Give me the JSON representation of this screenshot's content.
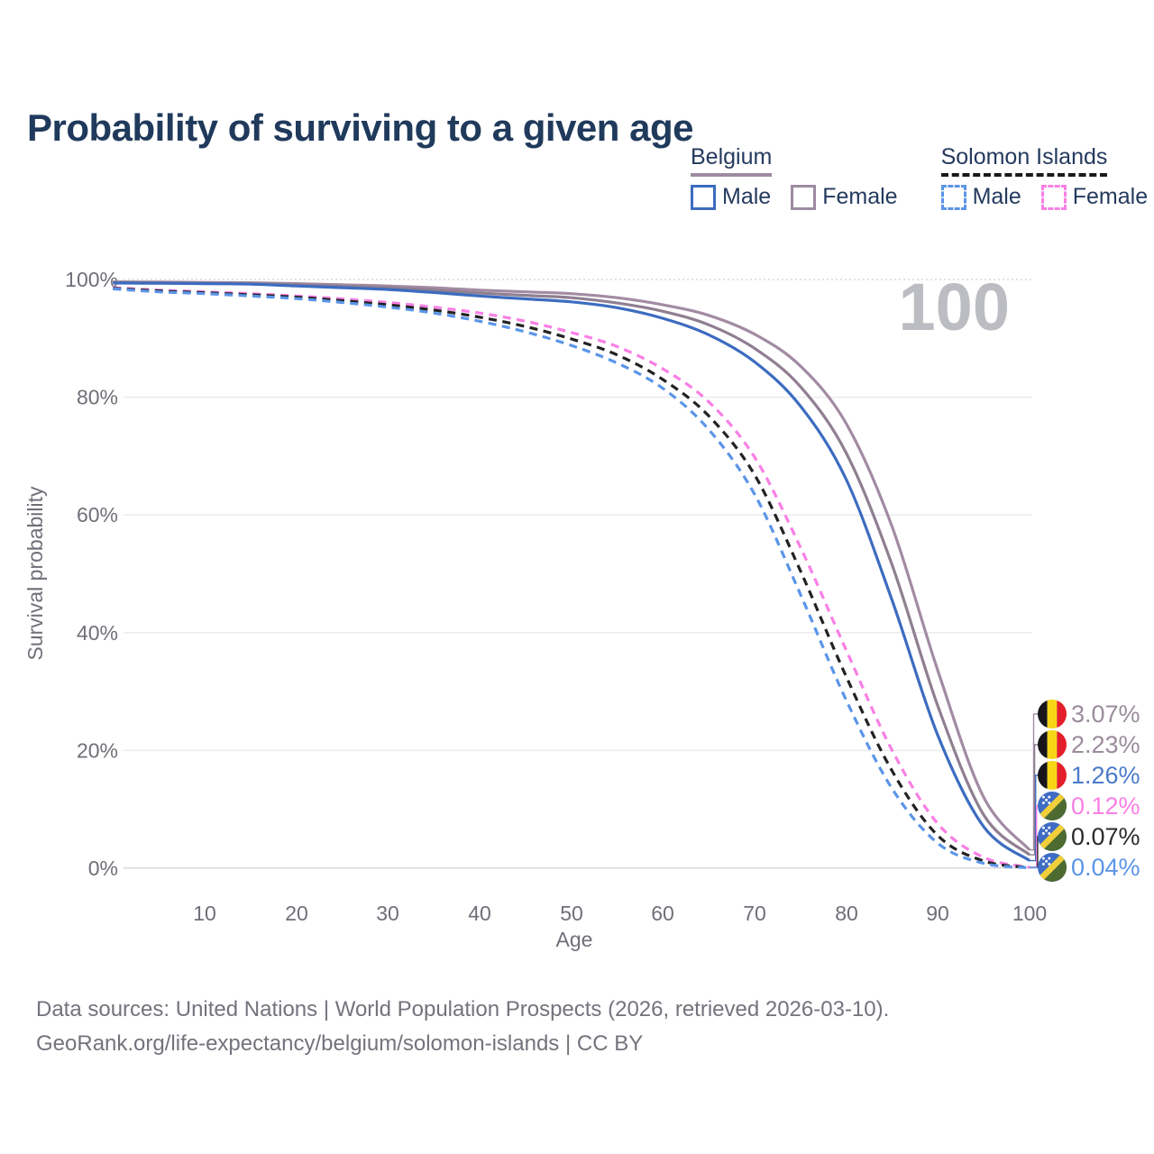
{
  "header": {
    "title": "Probability of surviving to a given age"
  },
  "legend": {
    "groups": [
      {
        "label": "Belgium",
        "line_style": "solid",
        "underline_color": "#9d8ba1",
        "items": [
          {
            "label": "Male",
            "color": "#3c6cc0"
          },
          {
            "label": "Female",
            "color": "#9d8ba1"
          }
        ]
      },
      {
        "label": "Solomon Islands",
        "line_style": "dashed",
        "underline_color": "#1a1a1a",
        "items": [
          {
            "label": "Male",
            "color": "#5b95e8"
          },
          {
            "label": "Female",
            "color": "#f97fe5"
          }
        ]
      }
    ]
  },
  "chart_data": {
    "type": "line",
    "title": "Probability of surviving to a given age",
    "xlabel": "Age",
    "ylabel": "Survival probability",
    "xlim": [
      0,
      100
    ],
    "ylim": [
      0,
      100
    ],
    "grid": "horizontal",
    "watermark": "100",
    "x_tick_labels": [
      "10",
      "20",
      "30",
      "40",
      "50",
      "60",
      "70",
      "80",
      "90",
      "100"
    ],
    "y_tick_labels": [
      "0%",
      "20%",
      "40%",
      "60%",
      "80%",
      "100%"
    ],
    "ages": [
      0,
      5,
      10,
      15,
      20,
      25,
      30,
      35,
      40,
      45,
      50,
      55,
      60,
      65,
      70,
      75,
      80,
      85,
      90,
      95,
      100
    ],
    "series": [
      {
        "id": "belgium-female",
        "name": "Belgium Female",
        "country": "Belgium",
        "color": "#a28ba2",
        "line_style": "solid",
        "values": [
          99.6,
          99.55,
          99.5,
          99.45,
          99.3,
          99.1,
          98.9,
          98.6,
          98.2,
          97.9,
          97.6,
          96.9,
          95.7,
          93.9,
          90.7,
          85.3,
          75.5,
          58.0,
          33.5,
          12.0,
          3.07
        ]
      },
      {
        "id": "belgium-both",
        "name": "Belgium Both sexes",
        "country": "Belgium",
        "color": "#8f7f91",
        "line_style": "solid",
        "values": [
          99.5,
          99.45,
          99.4,
          99.3,
          99.1,
          98.85,
          98.6,
          98.2,
          97.7,
          97.3,
          96.9,
          96.0,
          94.6,
          92.3,
          88.3,
          81.8,
          70.5,
          51.5,
          27.5,
          9.0,
          2.23
        ]
      },
      {
        "id": "belgium-male",
        "name": "Belgium Male",
        "country": "Belgium",
        "color": "#3c6cc0",
        "line_style": "solid",
        "values": [
          99.4,
          99.35,
          99.3,
          99.2,
          98.9,
          98.6,
          98.3,
          97.8,
          97.2,
          96.7,
          96.2,
          95.2,
          93.4,
          90.6,
          86.0,
          78.5,
          66.0,
          45.5,
          22.5,
          7.0,
          1.26
        ]
      },
      {
        "id": "solomon-islands-female",
        "name": "Solomon Islands Female",
        "country": "Solomon Islands",
        "color": "#f97fe5",
        "line_style": "dashed",
        "values": [
          98.6,
          98.2,
          97.9,
          97.6,
          97.2,
          96.7,
          96.1,
          95.3,
          94.3,
          92.9,
          91.0,
          88.6,
          84.8,
          79.2,
          69.8,
          54.5,
          37.0,
          20.0,
          7.5,
          1.8,
          0.12
        ]
      },
      {
        "id": "solomon-islands-both",
        "name": "Solomon Islands Both sexes",
        "country": "Solomon Islands",
        "color": "#222222",
        "line_style": "dashed",
        "values": [
          98.5,
          98.05,
          97.75,
          97.4,
          97.0,
          96.4,
          95.7,
          94.8,
          93.6,
          92.0,
          89.9,
          87.2,
          83.0,
          76.8,
          66.8,
          50.5,
          32.5,
          16.5,
          5.5,
          1.2,
          0.07
        ]
      },
      {
        "id": "solomon-islands-male",
        "name": "Solomon Islands Male",
        "country": "Solomon Islands",
        "color": "#5b95e8",
        "line_style": "dashed",
        "values": [
          98.4,
          97.9,
          97.6,
          97.2,
          96.75,
          96.1,
          95.3,
          94.3,
          92.9,
          91.1,
          88.8,
          85.8,
          81.5,
          74.5,
          63.5,
          46.5,
          28.5,
          13.5,
          4.2,
          0.8,
          0.04
        ]
      }
    ],
    "end_labels": [
      {
        "text": "3.07%",
        "value": 3.07,
        "flag": "belgium",
        "text_color": "#9b8b9d",
        "line_color": "#a28ba2"
      },
      {
        "text": "2.23%",
        "value": 2.23,
        "flag": "belgium",
        "text_color": "#9b8b9d",
        "line_color": "#8f7f91"
      },
      {
        "text": "1.26%",
        "value": 1.26,
        "flag": "belgium",
        "text_color": "#4a7ac9",
        "line_color": "#3c6cc0"
      },
      {
        "text": "0.12%",
        "value": 0.12,
        "flag": "solomon-islands",
        "text_color": "#f97fe5",
        "line_color": "#f97fe5"
      },
      {
        "text": "0.07%",
        "value": 0.07,
        "flag": "solomon-islands",
        "text_color": "#2b2b2b",
        "line_color": "#2b2b2b"
      },
      {
        "text": "0.04%",
        "value": 0.04,
        "flag": "solomon-islands",
        "text_color": "#5b95e8",
        "line_color": "#5b95e8"
      }
    ],
    "flag_colors": {
      "belgium": {
        "black": "#17161b",
        "yellow": "#f7d618",
        "red": "#e41e2a"
      },
      "solomon_islands": {
        "blue": "#3f6cc4",
        "green": "#4d6a30",
        "yellow": "#f0cf3a",
        "stars": "#ffffff"
      }
    }
  },
  "footer": {
    "line1": "Data sources: United Nations | World Population Prospects (2026, retrieved 2026-03-10).",
    "line2": "GeoRank.org/life-expectancy/belgium/solomon-islands | CC BY"
  }
}
